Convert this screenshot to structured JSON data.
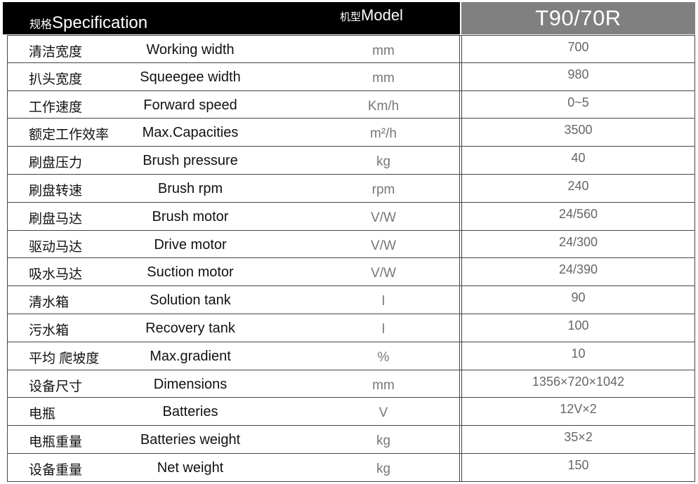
{
  "header": {
    "spec_cn": "规格",
    "spec_en": "Specification",
    "model_cn": "机型",
    "model_en": "Model",
    "model_name": "T90/70R"
  },
  "colors": {
    "header_left": "#000000",
    "header_right": "#808080"
  },
  "rows": [
    {
      "cn": "清洁宽度",
      "en": "Working width",
      "unit": "mm",
      "value": "700"
    },
    {
      "cn": "扒头宽度",
      "en": "Squeegee width",
      "unit": "mm",
      "value": "980"
    },
    {
      "cn": "工作速度",
      "en": "Forward speed",
      "unit": "Km/h",
      "value": "0~5"
    },
    {
      "cn": "额定工作效率",
      "en": "Max.Capacities",
      "unit": "m²/h",
      "value": "3500"
    },
    {
      "cn": "刷盘压力",
      "en": "Brush pressure",
      "unit": "kg",
      "value": "40"
    },
    {
      "cn": "刷盘转速",
      "en": "Brush rpm",
      "unit": "rpm",
      "value": "240"
    },
    {
      "cn": "刷盘马达",
      "en": "Brush motor",
      "unit": "V/W",
      "value": "24/560"
    },
    {
      "cn": "驱动马达",
      "en": "Drive motor",
      "unit": "V/W",
      "value": "24/300"
    },
    {
      "cn": "吸水马达",
      "en": "Suction motor",
      "unit": "V/W",
      "value": "24/390"
    },
    {
      "cn": "清水箱",
      "en": "Solution tank",
      "unit": "l",
      "value": "90"
    },
    {
      "cn": "污水箱",
      "en": "Recovery tank",
      "unit": "l",
      "value": "100"
    },
    {
      "cn": "平均 爬坡度",
      "en": "Max.gradient",
      "unit": "%",
      "value": "10"
    },
    {
      "cn": "设备尺寸",
      "en": "Dimensions",
      "unit": "mm",
      "value": "1356×720×1042"
    },
    {
      "cn": "电瓶",
      "en": "Batteries",
      "unit": "V",
      "value": "12V×2"
    },
    {
      "cn": "电瓶重量",
      "en": "Batteries weight",
      "unit": "kg",
      "value": "35×2"
    },
    {
      "cn": "设备重量",
      "en": "Net weight",
      "unit": "kg",
      "value": "150"
    }
  ]
}
